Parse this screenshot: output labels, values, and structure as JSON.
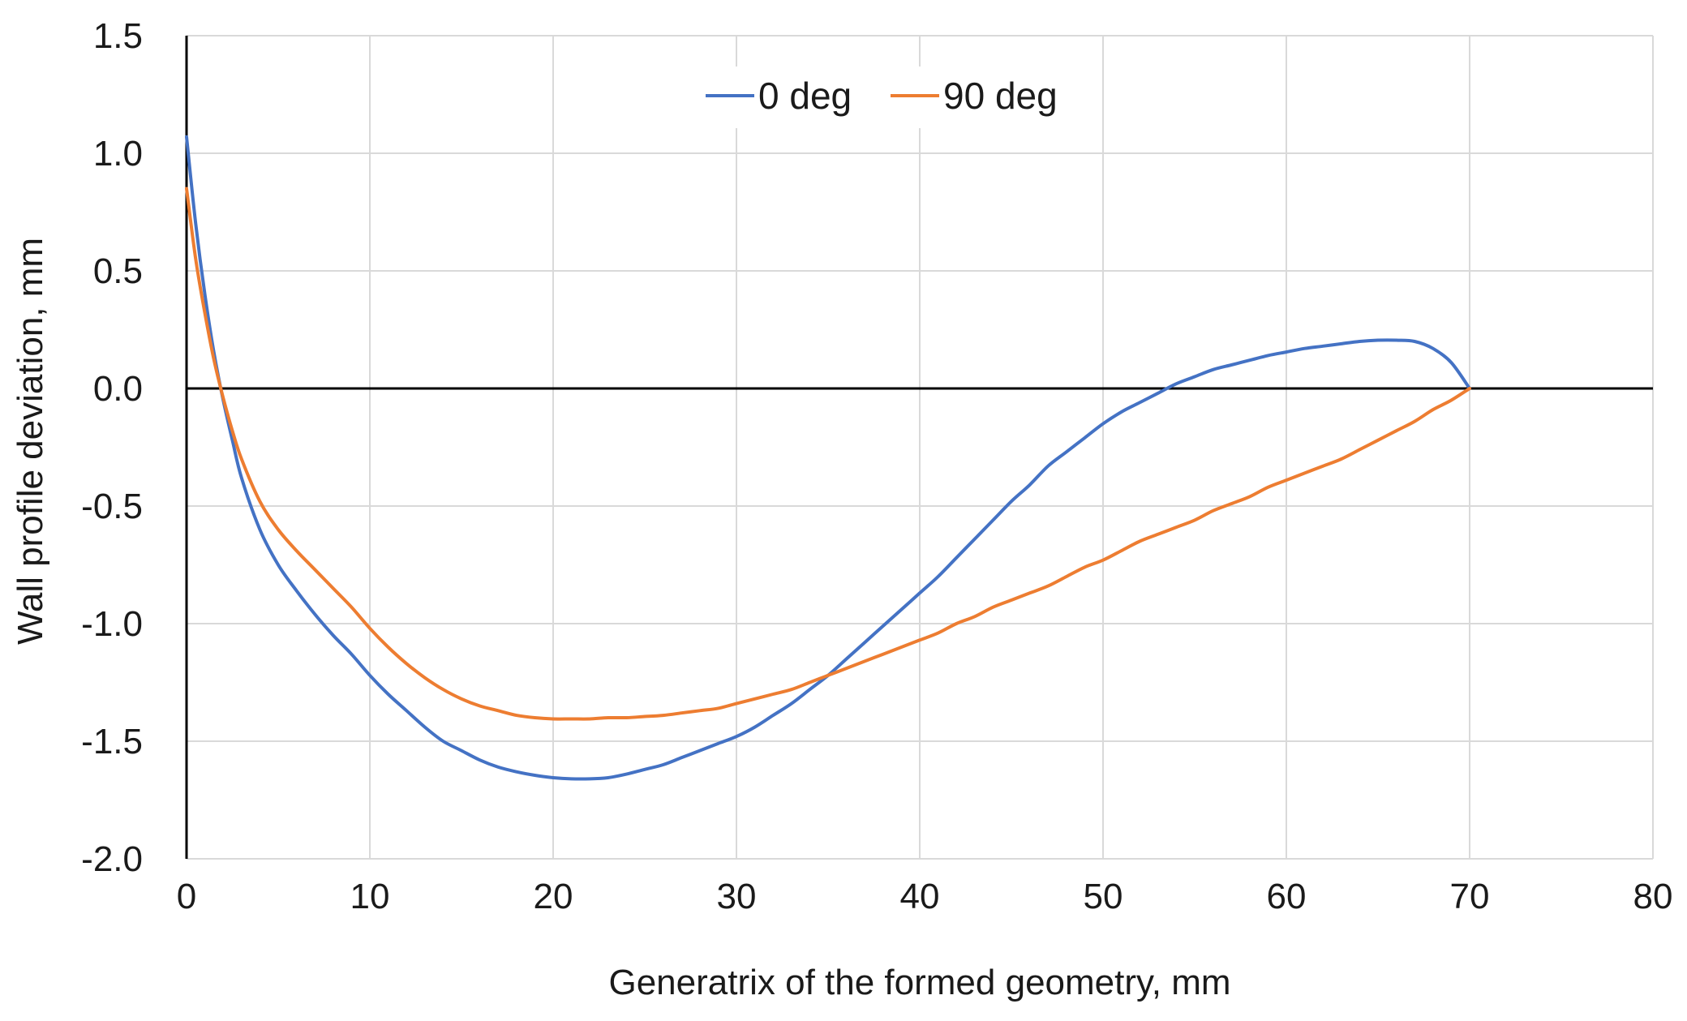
{
  "chart_data": {
    "type": "line",
    "title": "",
    "xlabel": "Generatrix of the formed geometry,  mm",
    "ylabel": "Wall  profile  deviation,  mm",
    "xlim": [
      0,
      80
    ],
    "ylim": [
      -2.0,
      1.5
    ],
    "xticks": [
      0,
      10,
      20,
      30,
      40,
      50,
      60,
      70,
      80
    ],
    "yticks": [
      1.5,
      1.0,
      0.5,
      0.0,
      -0.5,
      -1.0,
      -1.5,
      -2.0
    ],
    "xtick_labels": [
      "0",
      "10",
      "20",
      "30",
      "40",
      "50",
      "60",
      "70",
      "80"
    ],
    "ytick_labels": [
      "1.5",
      "1.0",
      "0.5",
      "0.0",
      "-0.5",
      "-1.0",
      "-1.5",
      "-2.0"
    ],
    "grid": true,
    "legend_position": "top-center",
    "series": [
      {
        "name": "0 deg",
        "color": "#4472c4",
        "x": [
          0,
          0.5,
          1,
          1.5,
          2,
          2.5,
          3,
          4,
          5,
          6,
          7,
          8,
          9,
          10,
          11,
          12,
          13,
          14,
          15,
          16,
          17,
          18,
          19,
          20,
          21,
          22,
          23,
          24,
          25,
          26,
          27,
          28,
          29,
          30,
          31,
          32,
          33,
          34,
          35,
          36,
          37,
          38,
          39,
          40,
          41,
          42,
          43,
          44,
          45,
          46,
          47,
          48,
          49,
          50,
          51,
          52,
          53,
          54,
          55,
          56,
          57,
          58,
          59,
          60,
          61,
          62,
          63,
          64,
          65,
          66,
          67,
          68,
          69,
          70
        ],
        "values": [
          1.07,
          0.7,
          0.4,
          0.15,
          -0.05,
          -0.22,
          -0.38,
          -0.6,
          -0.75,
          -0.86,
          -0.96,
          -1.05,
          -1.13,
          -1.22,
          -1.3,
          -1.37,
          -1.44,
          -1.5,
          -1.54,
          -1.58,
          -1.61,
          -1.63,
          -1.645,
          -1.655,
          -1.66,
          -1.66,
          -1.655,
          -1.64,
          -1.62,
          -1.6,
          -1.57,
          -1.54,
          -1.51,
          -1.48,
          -1.44,
          -1.39,
          -1.34,
          -1.28,
          -1.22,
          -1.15,
          -1.08,
          -1.01,
          -0.94,
          -0.87,
          -0.8,
          -0.72,
          -0.64,
          -0.56,
          -0.48,
          -0.41,
          -0.33,
          -0.27,
          -0.21,
          -0.15,
          -0.1,
          -0.06,
          -0.02,
          0.02,
          0.05,
          0.08,
          0.1,
          0.12,
          0.14,
          0.155,
          0.17,
          0.18,
          0.19,
          0.2,
          0.205,
          0.205,
          0.2,
          0.17,
          0.11,
          0.0
        ]
      },
      {
        "name": "90 deg",
        "color": "#ed7d31",
        "x": [
          0,
          0.5,
          1,
          1.5,
          2,
          2.5,
          3,
          4,
          5,
          6,
          7,
          8,
          9,
          10,
          11,
          12,
          13,
          14,
          15,
          16,
          17,
          18,
          19,
          20,
          21,
          22,
          23,
          24,
          25,
          26,
          27,
          28,
          29,
          30,
          31,
          32,
          33,
          34,
          35,
          36,
          37,
          38,
          39,
          40,
          41,
          42,
          43,
          44,
          45,
          46,
          47,
          48,
          49,
          50,
          51,
          52,
          53,
          54,
          55,
          56,
          57,
          58,
          59,
          60,
          61,
          62,
          63,
          64,
          65,
          66,
          67,
          68,
          69,
          70
        ],
        "values": [
          0.85,
          0.55,
          0.32,
          0.12,
          -0.04,
          -0.18,
          -0.3,
          -0.48,
          -0.6,
          -0.69,
          -0.77,
          -0.85,
          -0.93,
          -1.02,
          -1.1,
          -1.17,
          -1.23,
          -1.28,
          -1.32,
          -1.35,
          -1.37,
          -1.39,
          -1.4,
          -1.405,
          -1.405,
          -1.405,
          -1.4,
          -1.4,
          -1.395,
          -1.39,
          -1.38,
          -1.37,
          -1.36,
          -1.34,
          -1.32,
          -1.3,
          -1.28,
          -1.25,
          -1.22,
          -1.19,
          -1.16,
          -1.13,
          -1.1,
          -1.07,
          -1.04,
          -1.0,
          -0.97,
          -0.93,
          -0.9,
          -0.87,
          -0.84,
          -0.8,
          -0.76,
          -0.73,
          -0.69,
          -0.65,
          -0.62,
          -0.59,
          -0.56,
          -0.52,
          -0.49,
          -0.46,
          -0.42,
          -0.39,
          -0.36,
          -0.33,
          -0.3,
          -0.26,
          -0.22,
          -0.18,
          -0.14,
          -0.09,
          -0.05,
          0.0
        ]
      }
    ]
  }
}
